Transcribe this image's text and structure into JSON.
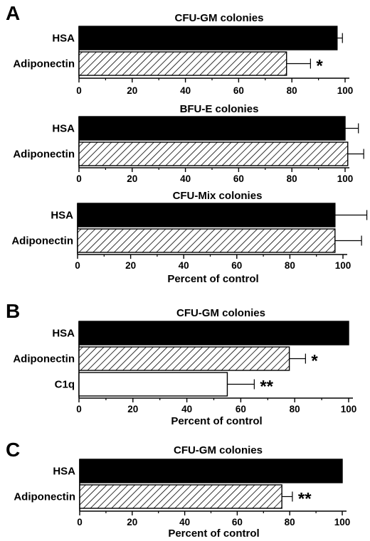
{
  "panels": [
    {
      "letter": "A",
      "chart_index": [
        0,
        1,
        2
      ]
    },
    {
      "letter": "B",
      "chart_index": [
        3
      ]
    },
    {
      "letter": "C",
      "chart_index": [
        4
      ]
    }
  ],
  "colors": {
    "hsa": "#000000",
    "c1q": "#ffffff",
    "hatch": "#000000"
  },
  "chart_data": [
    {
      "type": "bar",
      "orientation": "horizontal",
      "title": "CFU-GM colonies",
      "categories": [
        "HSA",
        "Adiponectin"
      ],
      "values": [
        97,
        78
      ],
      "errors": [
        2,
        9
      ],
      "fills": [
        "solid",
        "hatched"
      ],
      "significance": [
        "",
        "*"
      ],
      "xlabel": "",
      "xlim": [
        0,
        100
      ],
      "xticks": [
        0,
        20,
        40,
        60,
        80,
        100
      ],
      "grid": false,
      "legend": "none"
    },
    {
      "type": "bar",
      "orientation": "horizontal",
      "title": "BFU-E colonies",
      "categories": [
        "HSA",
        "Adiponectin"
      ],
      "values": [
        100,
        101
      ],
      "errors": [
        5,
        6
      ],
      "fills": [
        "solid",
        "hatched"
      ],
      "significance": [
        "",
        ""
      ],
      "xlabel": "",
      "xlim": [
        0,
        100
      ],
      "xticks": [
        0,
        20,
        40,
        60,
        80,
        100
      ],
      "grid": false,
      "legend": "none"
    },
    {
      "type": "bar",
      "orientation": "horizontal",
      "title": "CFU-Mix colonies",
      "categories": [
        "HSA",
        "Adiponectin"
      ],
      "values": [
        97,
        97
      ],
      "errors": [
        12,
        10
      ],
      "fills": [
        "solid",
        "hatched"
      ],
      "significance": [
        "",
        ""
      ],
      "xlabel": "Percent of control",
      "xlim": [
        0,
        100
      ],
      "xticks": [
        0,
        20,
        40,
        60,
        80,
        100
      ],
      "grid": false,
      "legend": "none"
    },
    {
      "type": "bar",
      "orientation": "horizontal",
      "title": "CFU-GM colonies",
      "categories": [
        "HSA",
        "Adiponectin",
        "C1q"
      ],
      "values": [
        100,
        78,
        55
      ],
      "errors": [
        0,
        6,
        10
      ],
      "fills": [
        "solid",
        "hatched",
        "white"
      ],
      "significance": [
        "",
        "*",
        "**"
      ],
      "xlabel": "Percent of control",
      "xlim": [
        0,
        100
      ],
      "xticks": [
        0,
        20,
        40,
        60,
        80,
        100
      ],
      "grid": false,
      "legend": "none"
    },
    {
      "type": "bar",
      "orientation": "horizontal",
      "title": "CFU-GM colonies",
      "categories": [
        "HSA",
        "Adiponectin"
      ],
      "values": [
        100,
        77
      ],
      "errors": [
        0,
        4
      ],
      "fills": [
        "solid",
        "hatched"
      ],
      "significance": [
        "",
        "**"
      ],
      "xlabel": "Percent of control",
      "xlim": [
        0,
        100
      ],
      "xticks": [
        0,
        20,
        40,
        60,
        80,
        100
      ],
      "grid": false,
      "legend": "none"
    }
  ]
}
